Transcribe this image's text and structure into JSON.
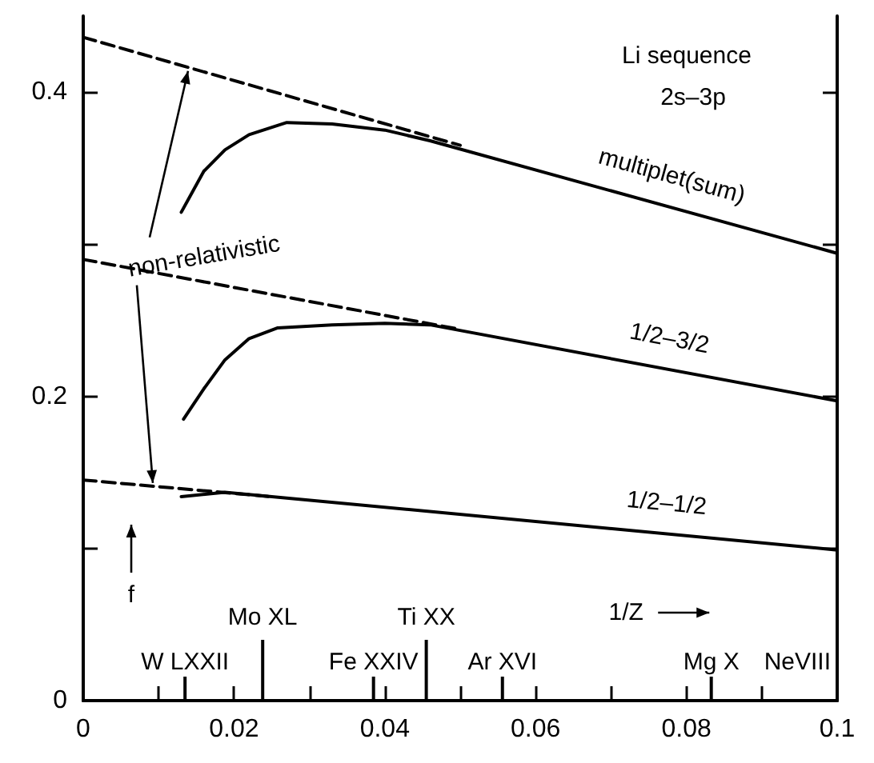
{
  "chart_data": {
    "type": "line",
    "title": "Li sequence",
    "subtitle": "2s–3p",
    "xlabel": "1/Z",
    "ylabel": "f",
    "xlim": [
      0,
      0.1
    ],
    "xticks": [
      0,
      {
        "value": 0.01,
        "label": null
      },
      0.02,
      {
        "value": 0.03,
        "label": null
      },
      0.04,
      {
        "value": 0.05,
        "label": null
      },
      0.06,
      {
        "value": 0.07,
        "label": null
      },
      0.08,
      {
        "value": 0.09,
        "label": null
      },
      0.1
    ],
    "ylim": [
      0,
      0.45
    ],
    "yticks": [
      0,
      {
        "value": 0.1,
        "label": null
      },
      0.2,
      {
        "value": 0.3,
        "label": null
      },
      0.4
    ],
    "annotations": [
      {
        "text": "non-relativistic",
        "x": 0.0139,
        "y": 0.416
      }
    ],
    "ref_lines": [
      {
        "axis": "x",
        "value": 0.0135,
        "label": "W LXXII"
      },
      {
        "axis": "x",
        "value": 0.0238,
        "label": "Mo XL"
      },
      {
        "axis": "x",
        "value": 0.0385,
        "label": "Fe XXIV"
      },
      {
        "axis": "x",
        "value": 0.0455,
        "label": "Ti XX"
      },
      {
        "axis": "x",
        "value": 0.0556,
        "label": "Ar XVI"
      },
      {
        "axis": "x",
        "value": 0.0833,
        "label": "Mg X"
      },
      {
        "axis": "x",
        "value": 0.1,
        "label": "NeVIII"
      }
    ],
    "series": [
      {
        "name": "multiplet(sum)",
        "color": "#000000",
        "line_style": "solid",
        "x": [
          0.013,
          0.016,
          0.0188,
          0.022,
          0.027,
          0.033,
          0.04,
          0.046,
          0.1
        ],
        "values": [
          0.321,
          0.348,
          0.362,
          0.372,
          0.38,
          0.379,
          0.375,
          0.368,
          0.294
        ]
      },
      {
        "color": "#000000",
        "line_style": "dashed",
        "x": [
          0,
          0.05
        ],
        "values": [
          0.436,
          0.365
        ]
      },
      {
        "name": "1/2–3/2",
        "color": "#000000",
        "line_style": "solid",
        "x": [
          0.0133,
          0.016,
          0.0188,
          0.022,
          0.0258,
          0.033,
          0.04,
          0.046,
          0.1
        ],
        "values": [
          0.185,
          0.205,
          0.224,
          0.238,
          0.245,
          0.247,
          0.248,
          0.247,
          0.197
        ]
      },
      {
        "color": "#000000",
        "line_style": "dashed",
        "x": [
          0,
          0.05
        ],
        "values": [
          0.29,
          0.244
        ]
      },
      {
        "name": "1/2–1/2",
        "color": "#000000",
        "line_style": "solid",
        "x": [
          0.013,
          0.0188,
          0.1
        ],
        "values": [
          0.134,
          0.137,
          0.099
        ]
      },
      {
        "color": "#000000",
        "line_style": "dashed",
        "x": [
          0,
          0.025
        ],
        "values": [
          0.145,
          0.134
        ]
      }
    ]
  }
}
